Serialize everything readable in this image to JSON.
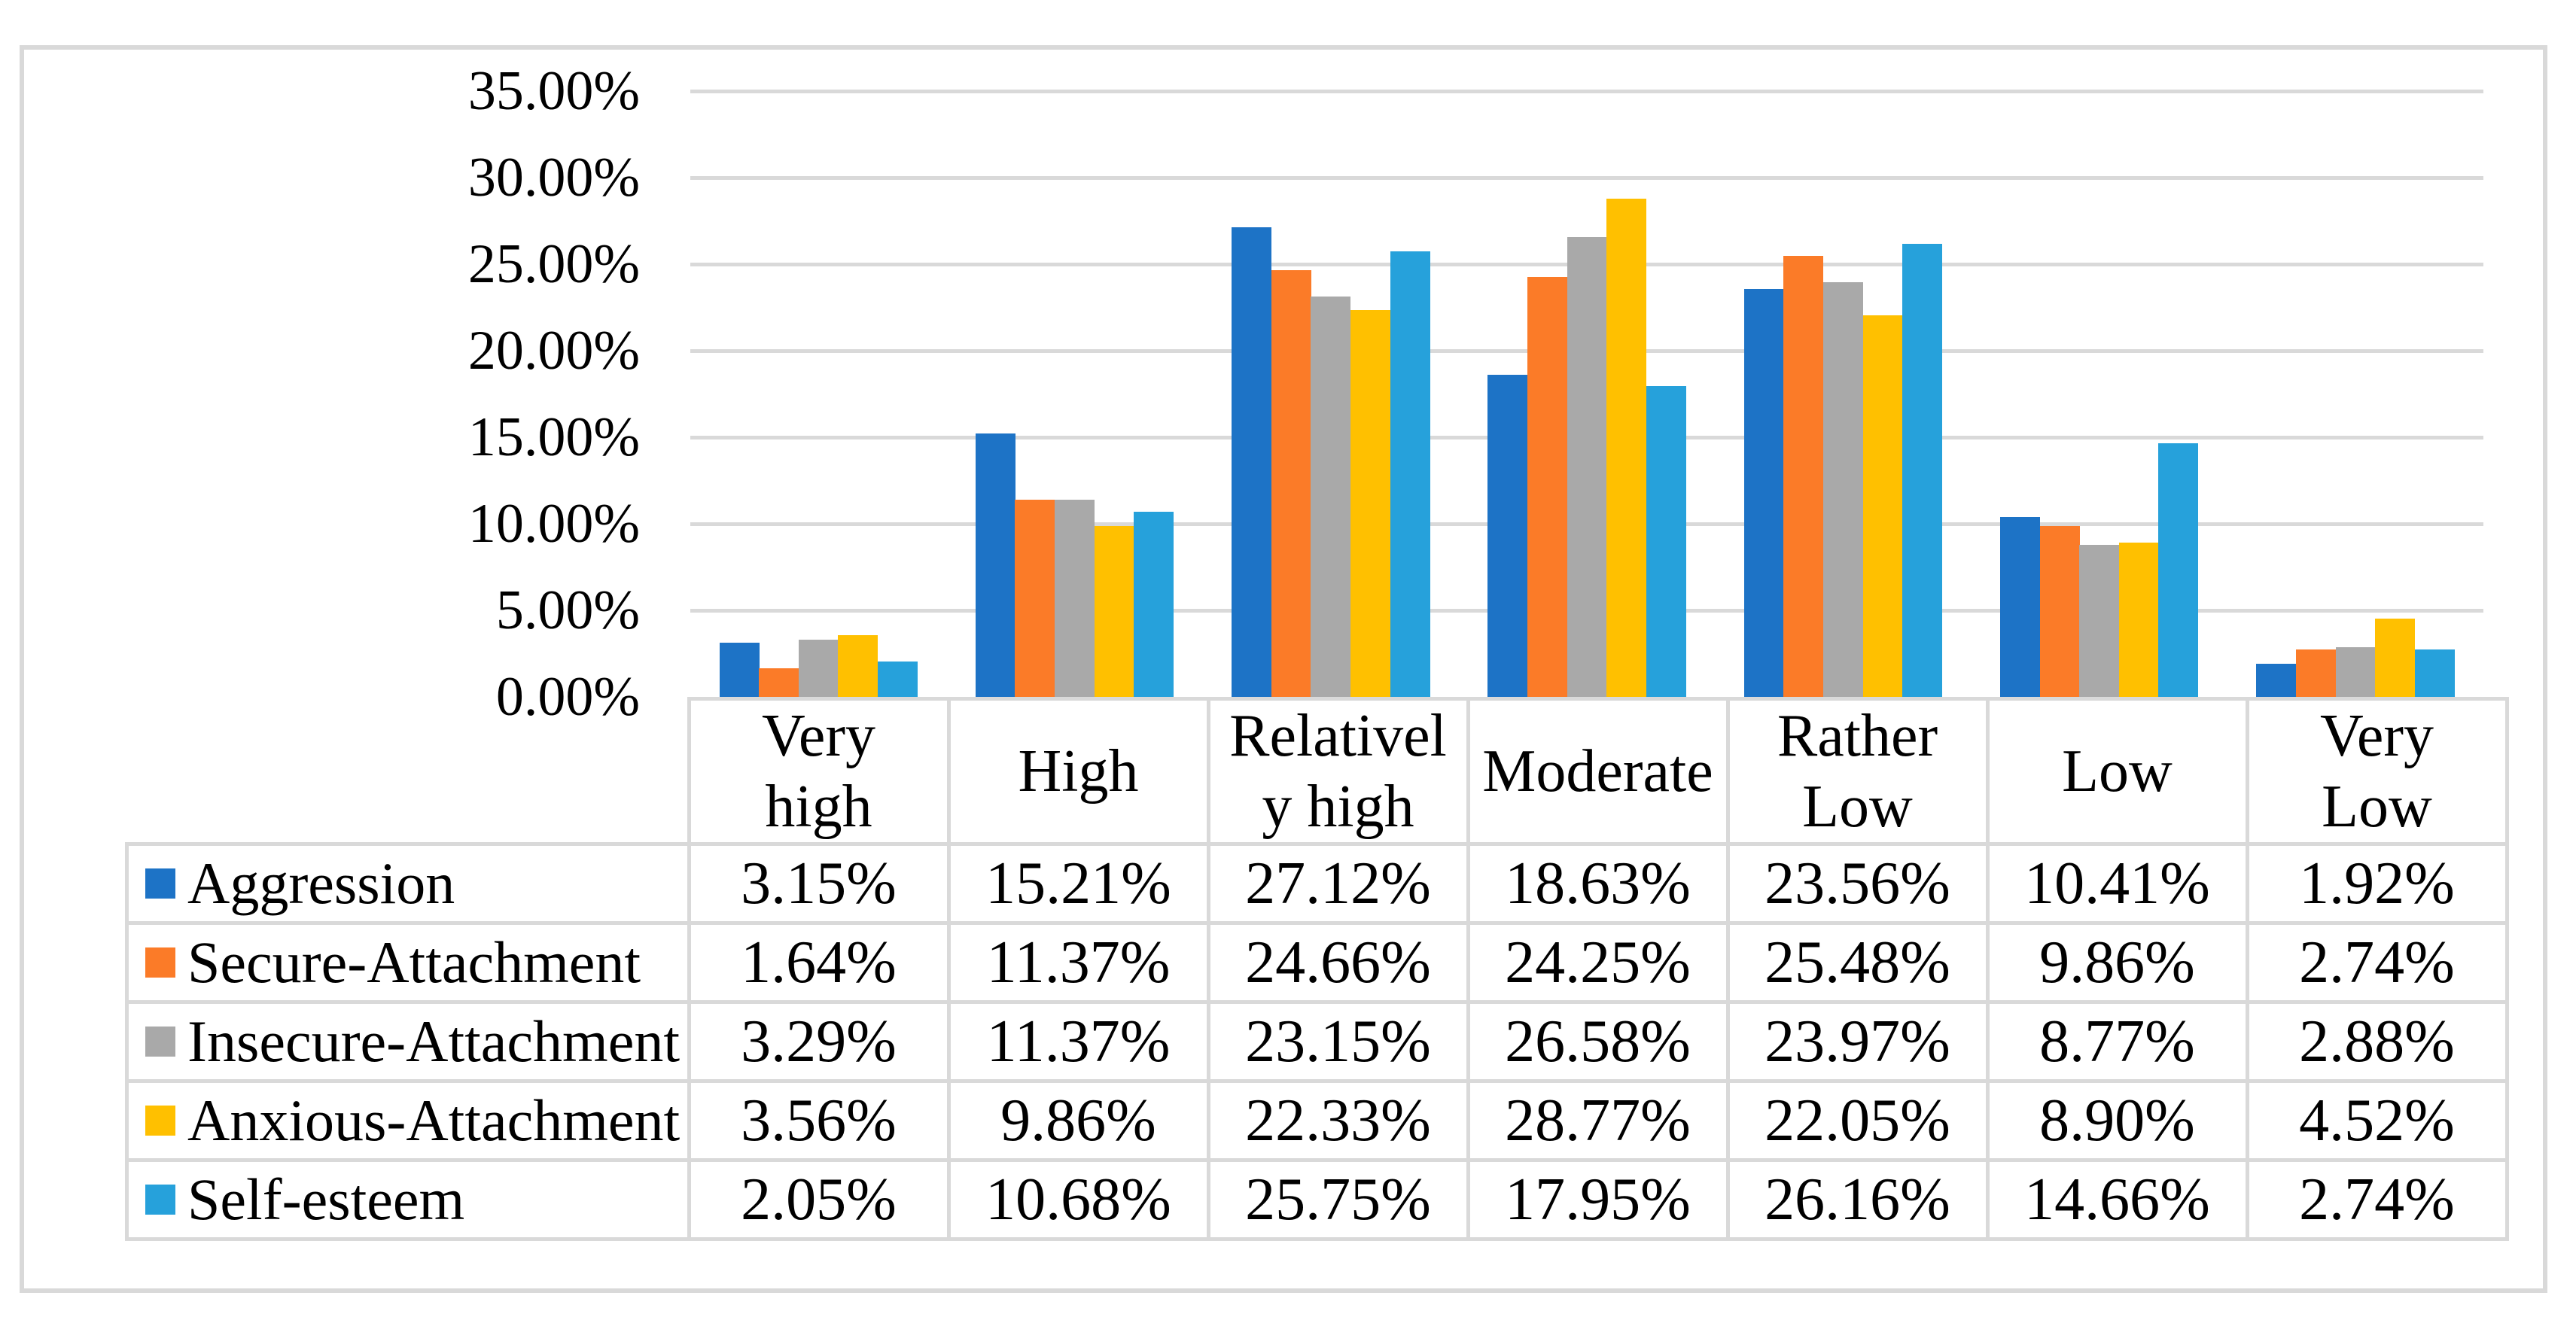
{
  "chart_data": {
    "type": "bar",
    "title": "",
    "categories": [
      "Very high",
      "High",
      "Relatively high",
      "Moderate",
      "Rather Low",
      "Low",
      "Very Low"
    ],
    "category_display": [
      "Very\nhigh",
      "High",
      "Relativel\ny high",
      "Moderate",
      "Rather\nLow",
      "Low",
      "Very\nLow"
    ],
    "series": [
      {
        "name": "Aggression",
        "color": "#1D73C6",
        "values": [
          3.15,
          15.21,
          27.12,
          18.63,
          23.56,
          10.41,
          1.92
        ]
      },
      {
        "name": "Secure-Attachment",
        "color": "#FB7B28",
        "values": [
          1.64,
          11.37,
          24.66,
          24.25,
          25.48,
          9.86,
          2.74
        ]
      },
      {
        "name": "Insecure-Attachment",
        "color": "#A9A9A9",
        "values": [
          3.29,
          11.37,
          23.15,
          26.58,
          23.97,
          8.77,
          2.88
        ]
      },
      {
        "name": "Anxious-Attachment",
        "color": "#FFC000",
        "values": [
          3.56,
          9.86,
          22.33,
          28.77,
          22.05,
          8.9,
          4.52
        ]
      },
      {
        "name": "Self-esteem",
        "color": "#26A1DB",
        "values": [
          2.05,
          10.68,
          25.75,
          17.95,
          26.16,
          14.66,
          2.74
        ]
      }
    ],
    "value_format": "percent-2dp",
    "y_axis": {
      "min": 0,
      "max": 35,
      "step": 5,
      "ticks": [
        "35.00%",
        "30.00%",
        "25.00%",
        "20.00%",
        "15.00%",
        "10.00%",
        "5.00%",
        "0.00%"
      ]
    },
    "legend_position": "table-left",
    "grid": true,
    "data_table_shown": true,
    "colors": {
      "gridline": "#D9D9D9",
      "table_border": "#D9D9D9",
      "figure_border": "#D9D9D9",
      "background": "#FFFFFF",
      "text": "#000000"
    }
  }
}
